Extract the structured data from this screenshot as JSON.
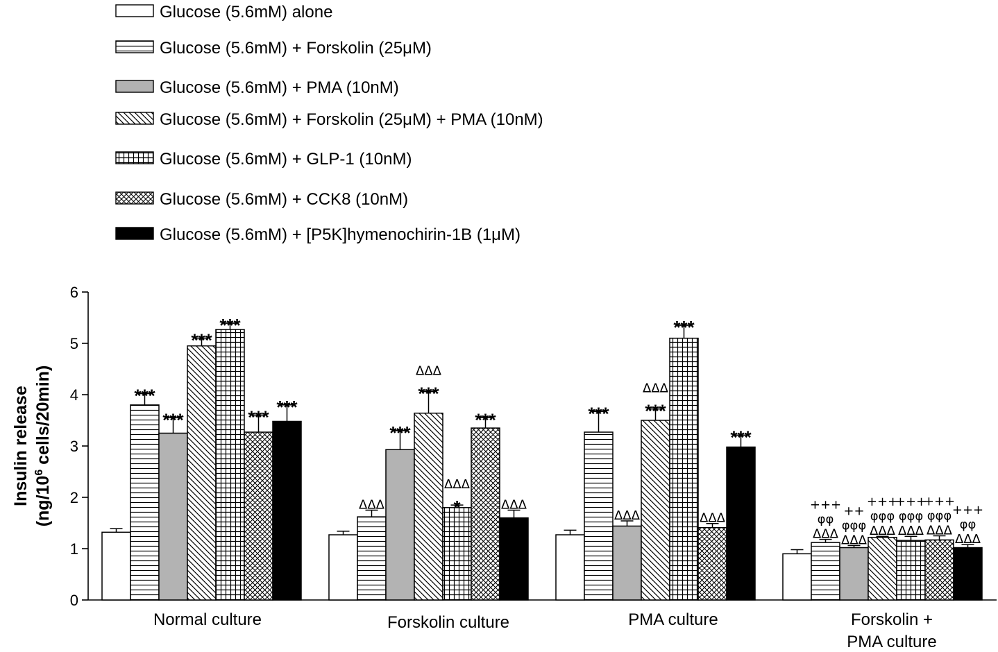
{
  "chart_data": {
    "type": "bar",
    "ylabel_line1": "Insulin release",
    "ylabel_line2_pre": "(ng/10",
    "ylabel_line2_sup": "6",
    "ylabel_line2_post": " cells/20min)",
    "ylim": [
      0,
      6
    ],
    "yticks": [
      "0",
      "1",
      "2",
      "3",
      "4",
      "5",
      "6"
    ],
    "grid": false,
    "legend_position": "top-left",
    "categories": [
      {
        "line1": "Normal culture",
        "line2": ""
      },
      {
        "line1": "Forskolin culture",
        "line2": ""
      },
      {
        "line1": "PMA culture",
        "line2": ""
      },
      {
        "line1": "Forskolin +",
        "line2": "PMA culture"
      }
    ],
    "series": [
      {
        "name": "Glucose (5.6mM) alone",
        "pattern": "white",
        "values": [
          1.32,
          1.27,
          1.27,
          0.9
        ],
        "errors": [
          0.07,
          0.07,
          0.09,
          0.08
        ],
        "sig": [
          [],
          [],
          [],
          []
        ]
      },
      {
        "name": "Glucose (5.6mM) + Forskolin (25μM)",
        "pattern": "hlines",
        "values": [
          3.8,
          1.62,
          3.27,
          1.12
        ],
        "errors": [
          0.22,
          0.13,
          0.4,
          0.06
        ],
        "sig": [
          [
            "***"
          ],
          [
            "ΔΔΔ"
          ],
          [
            "***"
          ],
          [
            "+++",
            "φφ",
            "ΔΔΔ"
          ]
        ]
      },
      {
        "name": "Glucose (5.6mM) + PMA (10nM)",
        "pattern": "gray",
        "values": [
          3.25,
          2.93,
          1.44,
          1.02
        ],
        "errors": [
          0.3,
          0.37,
          0.1,
          0.04
        ],
        "sig": [
          [
            "***"
          ],
          [
            "***"
          ],
          [
            "ΔΔΔ"
          ],
          [
            "++",
            "φφφ",
            "ΔΔΔ"
          ]
        ]
      },
      {
        "name": "Glucose (5.6mM) + Forskolin (25μM) + PMA (10nM)",
        "pattern": "diag",
        "values": [
          4.95,
          3.64,
          3.5,
          1.22
        ],
        "errors": [
          0.15,
          0.42,
          0.22,
          0.02
        ],
        "sig": [
          [
            "***"
          ],
          [
            "ΔΔΔ",
            "***"
          ],
          [
            "ΔΔΔ",
            "***"
          ],
          [
            "+++",
            "φφφ",
            "ΔΔΔ"
          ]
        ]
      },
      {
        "name": "Glucose (5.6mM) + GLP-1 (10nM)",
        "pattern": "grid",
        "values": [
          5.27,
          1.8,
          5.1,
          1.16
        ],
        "errors": [
          0.12,
          0.05,
          0.25,
          0.08
        ],
        "sig": [
          [
            "***"
          ],
          [
            "ΔΔΔ",
            "*"
          ],
          [
            "***"
          ],
          [
            "+++",
            "φφφ",
            "ΔΔΔ"
          ]
        ]
      },
      {
        "name": "Glucose (5.6mM) + CCK8 (10nM)",
        "pattern": "cross",
        "values": [
          3.27,
          3.35,
          1.41,
          1.17
        ],
        "errors": [
          0.33,
          0.2,
          0.08,
          0.08
        ],
        "sig": [
          [
            "***"
          ],
          [
            "***"
          ],
          [
            "ΔΔΔ"
          ],
          [
            "+++",
            "φφφ",
            "ΔΔΔ"
          ]
        ]
      },
      {
        "name": "Glucose (5.6mM) + [P5K]hymenochirin-1B (1μM)",
        "pattern": "black",
        "values": [
          3.48,
          1.6,
          2.98,
          1.02
        ],
        "errors": [
          0.32,
          0.15,
          0.23,
          0.06
        ],
        "sig": [
          [
            "***"
          ],
          [
            "ΔΔΔ"
          ],
          [
            "***"
          ],
          [
            "+++",
            "φφ",
            "ΔΔΔ"
          ]
        ]
      }
    ]
  }
}
